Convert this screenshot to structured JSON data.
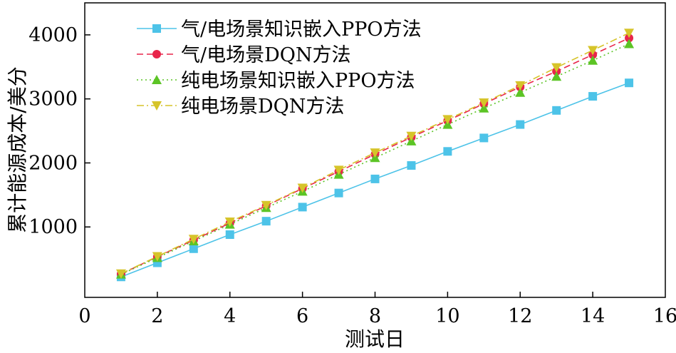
{
  "chart_data": {
    "type": "line",
    "xlabel": "测试日",
    "ylabel": "累计能源成本/美分",
    "xlim": [
      0,
      16
    ],
    "ylim": [
      -100,
      4500
    ],
    "xticks": [
      0,
      2,
      4,
      6,
      8,
      10,
      12,
      14,
      16
    ],
    "yticks": [
      1000,
      2000,
      3000,
      4000
    ],
    "grid": false,
    "legend_position": "top-left",
    "x": [
      1,
      2,
      3,
      4,
      5,
      6,
      7,
      8,
      9,
      10,
      11,
      12,
      13,
      14,
      15
    ],
    "series": [
      {
        "name": "气/电场景知识嵌入PPO方法",
        "color": "#4dc3e8",
        "marker": "square",
        "line": "solid",
        "values": [
          220,
          440,
          660,
          880,
          1090,
          1310,
          1530,
          1750,
          1960,
          2180,
          2390,
          2600,
          2820,
          3040,
          3250
        ]
      },
      {
        "name": "气/电场景DQN方法",
        "color": "#e8254a",
        "marker": "circle",
        "line": "dash",
        "values": [
          265,
          535,
          795,
          1060,
          1330,
          1600,
          1865,
          2135,
          2400,
          2660,
          2925,
          3185,
          3430,
          3690,
          3950
        ]
      },
      {
        "name": "纯电场景知识嵌入PPO方法",
        "color": "#5cc425",
        "marker": "triangle-up",
        "line": "dot",
        "values": [
          260,
          520,
          780,
          1040,
          1300,
          1555,
          1820,
          2080,
          2340,
          2600,
          2855,
          3100,
          3350,
          3600,
          3860
        ]
      },
      {
        "name": "纯电场景DQN方法",
        "color": "#d6c42a",
        "marker": "triangle-down",
        "line": "dashdot",
        "values": [
          270,
          540,
          810,
          1080,
          1340,
          1610,
          1890,
          2160,
          2420,
          2680,
          2940,
          3210,
          3490,
          3760,
          4030
        ]
      }
    ]
  }
}
